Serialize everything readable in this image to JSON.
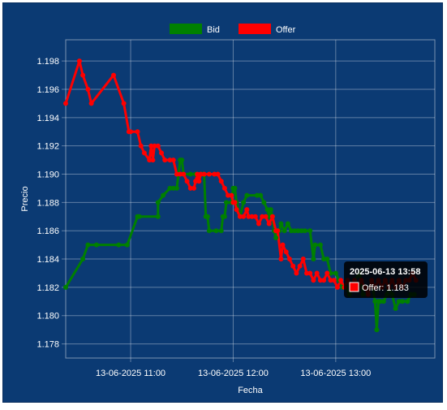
{
  "chart_data": {
    "type": "line",
    "xlabel": "Fecha",
    "ylabel": "Precio",
    "ylim": [
      1.177,
      1.1995
    ],
    "y_ticks": [
      1.178,
      1.18,
      1.182,
      1.184,
      1.186,
      1.188,
      1.19,
      1.192,
      1.194,
      1.196,
      1.198
    ],
    "x_time_range": [
      "2025-06-13 10:22",
      "2025-06-13 13:58"
    ],
    "x_ticks": [
      {
        "time": "2025-06-13 11:00",
        "label": "13-06-2025 11:00"
      },
      {
        "time": "2025-06-13 12:00",
        "label": "13-06-2025 12:00"
      },
      {
        "time": "2025-06-13 13:00",
        "label": "13-06-2025 13:00"
      }
    ],
    "grid": true,
    "legend_position": "top-center",
    "series": [
      {
        "name": "Bid",
        "color": "#008000",
        "points": [
          [
            "2025-06-13 10:22",
            1.182
          ],
          [
            "2025-06-13 10:32",
            1.184
          ],
          [
            "2025-06-13 10:35",
            1.185
          ],
          [
            "2025-06-13 10:40",
            1.185
          ],
          [
            "2025-06-13 10:53",
            1.185
          ],
          [
            "2025-06-13 10:58",
            1.185
          ],
          [
            "2025-06-13 11:04",
            1.187
          ],
          [
            "2025-06-13 11:05",
            1.187
          ],
          [
            "2025-06-13 11:16",
            1.187
          ],
          [
            "2025-06-13 11:16",
            1.188
          ],
          [
            "2025-06-13 11:19",
            1.1885
          ],
          [
            "2025-06-13 11:23",
            1.189
          ],
          [
            "2025-06-13 11:25",
            1.189
          ],
          [
            "2025-06-13 11:27",
            1.189
          ],
          [
            "2025-06-13 11:28",
            1.19
          ],
          [
            "2025-06-13 11:29",
            1.191
          ],
          [
            "2025-06-13 11:30",
            1.191
          ],
          [
            "2025-06-13 11:31",
            1.19
          ],
          [
            "2025-06-13 11:35",
            1.19
          ],
          [
            "2025-06-13 11:38",
            1.19
          ],
          [
            "2025-06-13 11:42",
            1.19
          ],
          [
            "2025-06-13 11:43",
            1.19
          ],
          [
            "2025-06-13 11:44",
            1.187
          ],
          [
            "2025-06-13 11:45",
            1.187
          ],
          [
            "2025-06-13 11:46",
            1.186
          ],
          [
            "2025-06-13 11:50",
            1.186
          ],
          [
            "2025-06-13 11:53",
            1.186
          ],
          [
            "2025-06-13 11:54",
            1.187
          ],
          [
            "2025-06-13 11:55",
            1.187
          ],
          [
            "2025-06-13 11:56",
            1.188
          ],
          [
            "2025-06-13 11:59",
            1.188
          ],
          [
            "2025-06-13 12:00",
            1.189
          ],
          [
            "2025-06-13 12:01",
            1.189
          ],
          [
            "2025-06-13 12:02",
            1.188
          ],
          [
            "2025-06-13 12:04",
            1.187
          ],
          [
            "2025-06-13 12:06",
            1.188
          ],
          [
            "2025-06-13 12:08",
            1.1885
          ],
          [
            "2025-06-13 12:14",
            1.1885
          ],
          [
            "2025-06-13 12:16",
            1.1885
          ],
          [
            "2025-06-13 12:18",
            1.188
          ],
          [
            "2025-06-13 12:20",
            1.1875
          ],
          [
            "2025-06-13 12:21",
            1.187
          ],
          [
            "2025-06-13 12:22",
            1.1875
          ],
          [
            "2025-06-13 12:23",
            1.187
          ],
          [
            "2025-06-13 12:24",
            1.186
          ],
          [
            "2025-06-13 12:25",
            1.1855
          ],
          [
            "2025-06-13 12:27",
            1.186
          ],
          [
            "2025-06-13 12:28",
            1.1865
          ],
          [
            "2025-06-13 12:30",
            1.186
          ],
          [
            "2025-06-13 12:32",
            1.1865
          ],
          [
            "2025-06-13 12:34",
            1.186
          ],
          [
            "2025-06-13 12:36",
            1.186
          ],
          [
            "2025-06-13 12:38",
            1.186
          ],
          [
            "2025-06-13 12:40",
            1.186
          ],
          [
            "2025-06-13 12:42",
            1.186
          ],
          [
            "2025-06-13 12:45",
            1.186
          ],
          [
            "2025-06-13 12:47",
            1.184
          ],
          [
            "2025-06-13 12:48",
            1.185
          ],
          [
            "2025-06-13 12:51",
            1.185
          ],
          [
            "2025-06-13 12:53",
            1.184
          ],
          [
            "2025-06-13 12:55",
            1.184
          ],
          [
            "2025-06-13 12:57",
            1.183
          ],
          [
            "2025-06-13 13:00",
            1.183
          ],
          [
            "2025-06-13 13:02",
            1.1825
          ],
          [
            "2025-06-13 13:04",
            1.182
          ],
          [
            "2025-06-13 13:06",
            1.182
          ],
          [
            "2025-06-13 13:08",
            1.1815
          ],
          [
            "2025-06-13 13:11",
            1.1825
          ],
          [
            "2025-06-13 13:14",
            1.183
          ],
          [
            "2025-06-13 13:16",
            1.1815
          ],
          [
            "2025-06-13 13:19",
            1.1815
          ],
          [
            "2025-06-13 13:21",
            1.1825
          ],
          [
            "2025-06-13 13:23",
            1.181
          ],
          [
            "2025-06-13 13:24",
            1.179
          ],
          [
            "2025-06-13 13:25",
            1.181
          ],
          [
            "2025-06-13 13:26",
            1.181
          ],
          [
            "2025-06-13 13:28",
            1.181
          ],
          [
            "2025-06-13 13:30",
            1.1815
          ],
          [
            "2025-06-13 13:31",
            1.182
          ],
          [
            "2025-06-13 13:33",
            1.1815
          ],
          [
            "2025-06-13 13:35",
            1.1805
          ],
          [
            "2025-06-13 13:37",
            1.181
          ],
          [
            "2025-06-13 13:39",
            1.181
          ],
          [
            "2025-06-13 13:42",
            1.181
          ],
          [
            "2025-06-13 13:44",
            1.1815
          ],
          [
            "2025-06-13 13:46",
            1.1815
          ]
        ]
      },
      {
        "name": "Offer",
        "color": "#ff0000",
        "points": [
          [
            "2025-06-13 10:22",
            1.195
          ],
          [
            "2025-06-13 10:30",
            1.198
          ],
          [
            "2025-06-13 10:32",
            1.197
          ],
          [
            "2025-06-13 10:35",
            1.196
          ],
          [
            "2025-06-13 10:37",
            1.195
          ],
          [
            "2025-06-13 10:50",
            1.197
          ],
          [
            "2025-06-13 10:56",
            1.195
          ],
          [
            "2025-06-13 10:59",
            1.193
          ],
          [
            "2025-06-13 11:00",
            1.193
          ],
          [
            "2025-06-13 11:04",
            1.193
          ],
          [
            "2025-06-13 11:06",
            1.192
          ],
          [
            "2025-06-13 11:08",
            1.1915
          ],
          [
            "2025-06-13 11:11",
            1.191
          ],
          [
            "2025-06-13 11:12",
            1.192
          ],
          [
            "2025-06-13 11:13",
            1.191
          ],
          [
            "2025-06-13 11:14",
            1.192
          ],
          [
            "2025-06-13 11:16",
            1.192
          ],
          [
            "2025-06-13 11:18",
            1.1915
          ],
          [
            "2025-06-13 11:20",
            1.191
          ],
          [
            "2025-06-13 11:23",
            1.191
          ],
          [
            "2025-06-13 11:25",
            1.191
          ],
          [
            "2025-06-13 11:27",
            1.19
          ],
          [
            "2025-06-13 11:29",
            1.19
          ],
          [
            "2025-06-13 11:31",
            1.19
          ],
          [
            "2025-06-13 11:33",
            1.1895
          ],
          [
            "2025-06-13 11:35",
            1.189
          ],
          [
            "2025-06-13 11:37",
            1.189
          ],
          [
            "2025-06-13 11:38",
            1.1895
          ],
          [
            "2025-06-13 11:39",
            1.19
          ],
          [
            "2025-06-13 11:40",
            1.1895
          ],
          [
            "2025-06-13 11:41",
            1.19
          ],
          [
            "2025-06-13 11:43",
            1.19
          ],
          [
            "2025-06-13 11:46",
            1.19
          ],
          [
            "2025-06-13 11:49",
            1.19
          ],
          [
            "2025-06-13 11:51",
            1.19
          ],
          [
            "2025-06-13 11:53",
            1.1895
          ],
          [
            "2025-06-13 11:55",
            1.189
          ],
          [
            "2025-06-13 11:57",
            1.1885
          ],
          [
            "2025-06-13 11:59",
            1.1885
          ],
          [
            "2025-06-13 12:00",
            1.188
          ],
          [
            "2025-06-13 12:01",
            1.188
          ],
          [
            "2025-06-13 12:02",
            1.1875
          ],
          [
            "2025-06-13 12:04",
            1.187
          ],
          [
            "2025-06-13 12:06",
            1.187
          ],
          [
            "2025-06-13 12:08",
            1.1875
          ],
          [
            "2025-06-13 12:09",
            1.187
          ],
          [
            "2025-06-13 12:11",
            1.187
          ],
          [
            "2025-06-13 12:13",
            1.187
          ],
          [
            "2025-06-13 12:15",
            1.1865
          ],
          [
            "2025-06-13 12:17",
            1.187
          ],
          [
            "2025-06-13 12:19",
            1.187
          ],
          [
            "2025-06-13 12:21",
            1.1865
          ],
          [
            "2025-06-13 12:23",
            1.187
          ],
          [
            "2025-06-13 12:25",
            1.186
          ],
          [
            "2025-06-13 12:26",
            1.186
          ],
          [
            "2025-06-13 12:28",
            1.184
          ],
          [
            "2025-06-13 12:29",
            1.185
          ],
          [
            "2025-06-13 12:31",
            1.1845
          ],
          [
            "2025-06-13 12:33",
            1.184
          ],
          [
            "2025-06-13 12:35",
            1.1835
          ],
          [
            "2025-06-13 12:37",
            1.183
          ],
          [
            "2025-06-13 12:39",
            1.1835
          ],
          [
            "2025-06-13 12:41",
            1.184
          ],
          [
            "2025-06-13 12:43",
            1.183
          ],
          [
            "2025-06-13 12:45",
            1.183
          ],
          [
            "2025-06-13 12:47",
            1.1825
          ],
          [
            "2025-06-13 12:49",
            1.183
          ],
          [
            "2025-06-13 12:51",
            1.1825
          ],
          [
            "2025-06-13 12:53",
            1.1825
          ],
          [
            "2025-06-13 12:55",
            1.183
          ],
          [
            "2025-06-13 12:57",
            1.1825
          ],
          [
            "2025-06-13 12:59",
            1.1825
          ],
          [
            "2025-06-13 13:01",
            1.182
          ],
          [
            "2025-06-13 13:03",
            1.1825
          ],
          [
            "2025-06-13 13:05",
            1.182
          ],
          [
            "2025-06-13 13:07",
            1.1825
          ],
          [
            "2025-06-13 13:09",
            1.182
          ],
          [
            "2025-06-13 13:11",
            1.1825
          ],
          [
            "2025-06-13 13:13",
            1.182
          ],
          [
            "2025-06-13 13:15",
            1.1825
          ],
          [
            "2025-06-13 13:17",
            1.182
          ],
          [
            "2025-06-13 13:19",
            1.1815
          ],
          [
            "2025-06-13 13:21",
            1.1825
          ],
          [
            "2025-06-13 13:23",
            1.182
          ],
          [
            "2025-06-13 13:25",
            1.1825
          ],
          [
            "2025-06-13 13:27",
            1.182
          ],
          [
            "2025-06-13 13:29",
            1.1825
          ],
          [
            "2025-06-13 13:31",
            1.182
          ],
          [
            "2025-06-13 13:33",
            1.1825
          ],
          [
            "2025-06-13 13:35",
            1.182
          ],
          [
            "2025-06-13 13:37",
            1.1825
          ],
          [
            "2025-06-13 13:39",
            1.182
          ],
          [
            "2025-06-13 13:41",
            1.1825
          ],
          [
            "2025-06-13 13:43",
            1.1825
          ],
          [
            "2025-06-13 13:45",
            1.183
          ],
          [
            "2025-06-13 13:47",
            1.1825
          ]
        ]
      }
    ],
    "tooltip": {
      "title": "2025-06-13 13:58",
      "series": "Offer",
      "text": "Offer: 1.183"
    }
  }
}
